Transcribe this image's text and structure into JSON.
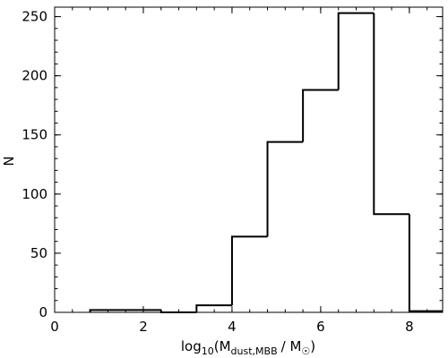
{
  "chart_data": {
    "type": "bar",
    "subtype": "step-histogram",
    "title": "",
    "xlabel": {
      "prefix": "log",
      "prefix_sub": "10",
      "open": "(M",
      "sub1": "dust,MBB",
      "mid": "/ M",
      "sub2": "☉",
      "close": ")"
    },
    "ylabel": "N",
    "xlim": [
      0,
      8.75
    ],
    "ylim": [
      0,
      258
    ],
    "xticks": [
      0,
      2,
      4,
      6,
      8
    ],
    "yticks": [
      0,
      50,
      100,
      150,
      200,
      250
    ],
    "bins": [
      {
        "x0": 0.8,
        "x1": 2.4,
        "count": 2
      },
      {
        "x0": 2.4,
        "x1": 3.2,
        "count": 0
      },
      {
        "x0": 3.2,
        "x1": 4.0,
        "count": 6
      },
      {
        "x0": 4.0,
        "x1": 4.8,
        "count": 64
      },
      {
        "x0": 4.8,
        "x1": 5.6,
        "count": 144
      },
      {
        "x0": 5.6,
        "x1": 6.4,
        "count": 188
      },
      {
        "x0": 6.4,
        "x1": 7.2,
        "count": 253
      },
      {
        "x0": 7.2,
        "x1": 8.0,
        "count": 83
      },
      {
        "x0": 8.0,
        "x1": 8.75,
        "count": 1
      }
    ],
    "line_color": "#000000",
    "grid": false,
    "legend": "none"
  }
}
